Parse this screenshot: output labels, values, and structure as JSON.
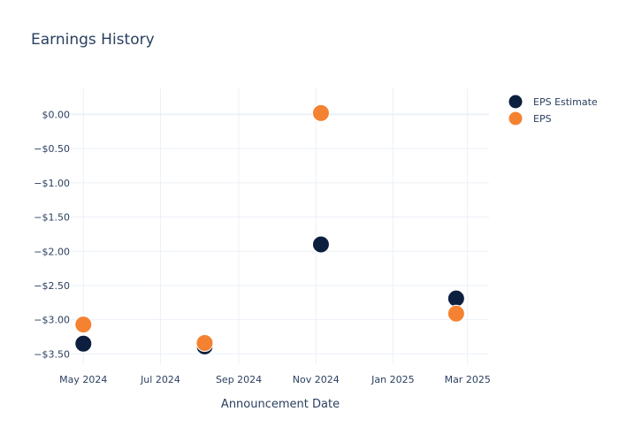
{
  "chart_data": {
    "type": "scatter",
    "title": "Earnings History",
    "xlabel": "Announcement Date",
    "ylabel": "",
    "x_ticks": [
      "May 2024",
      "Jul 2024",
      "Sep 2024",
      "Nov 2024",
      "Jan 2025",
      "Mar 2025"
    ],
    "y_ticks": [
      "$0.00",
      "−$0.50",
      "−$1.00",
      "−$1.50",
      "−$2.00",
      "−$2.50",
      "−$3.00",
      "−$3.50"
    ],
    "ylim": [
      -3.65,
      0.38
    ],
    "xlim": [
      "2024-04-21",
      "2025-03-18"
    ],
    "grid": true,
    "legend_position": "top-right",
    "series": [
      {
        "name": "EPS Estimate",
        "color": "#0d1f3f",
        "points": [
          {
            "x": "2024-05-01",
            "y": -3.35
          },
          {
            "x": "2024-08-05",
            "y": -3.39
          },
          {
            "x": "2024-11-05",
            "y": -1.9
          },
          {
            "x": "2025-02-20",
            "y": -2.69
          }
        ]
      },
      {
        "name": "EPS",
        "color": "#f58231",
        "points": [
          {
            "x": "2024-05-01",
            "y": -3.07
          },
          {
            "x": "2024-08-05",
            "y": -3.34
          },
          {
            "x": "2024-11-05",
            "y": 0.02
          },
          {
            "x": "2025-02-20",
            "y": -2.91
          }
        ]
      }
    ]
  }
}
